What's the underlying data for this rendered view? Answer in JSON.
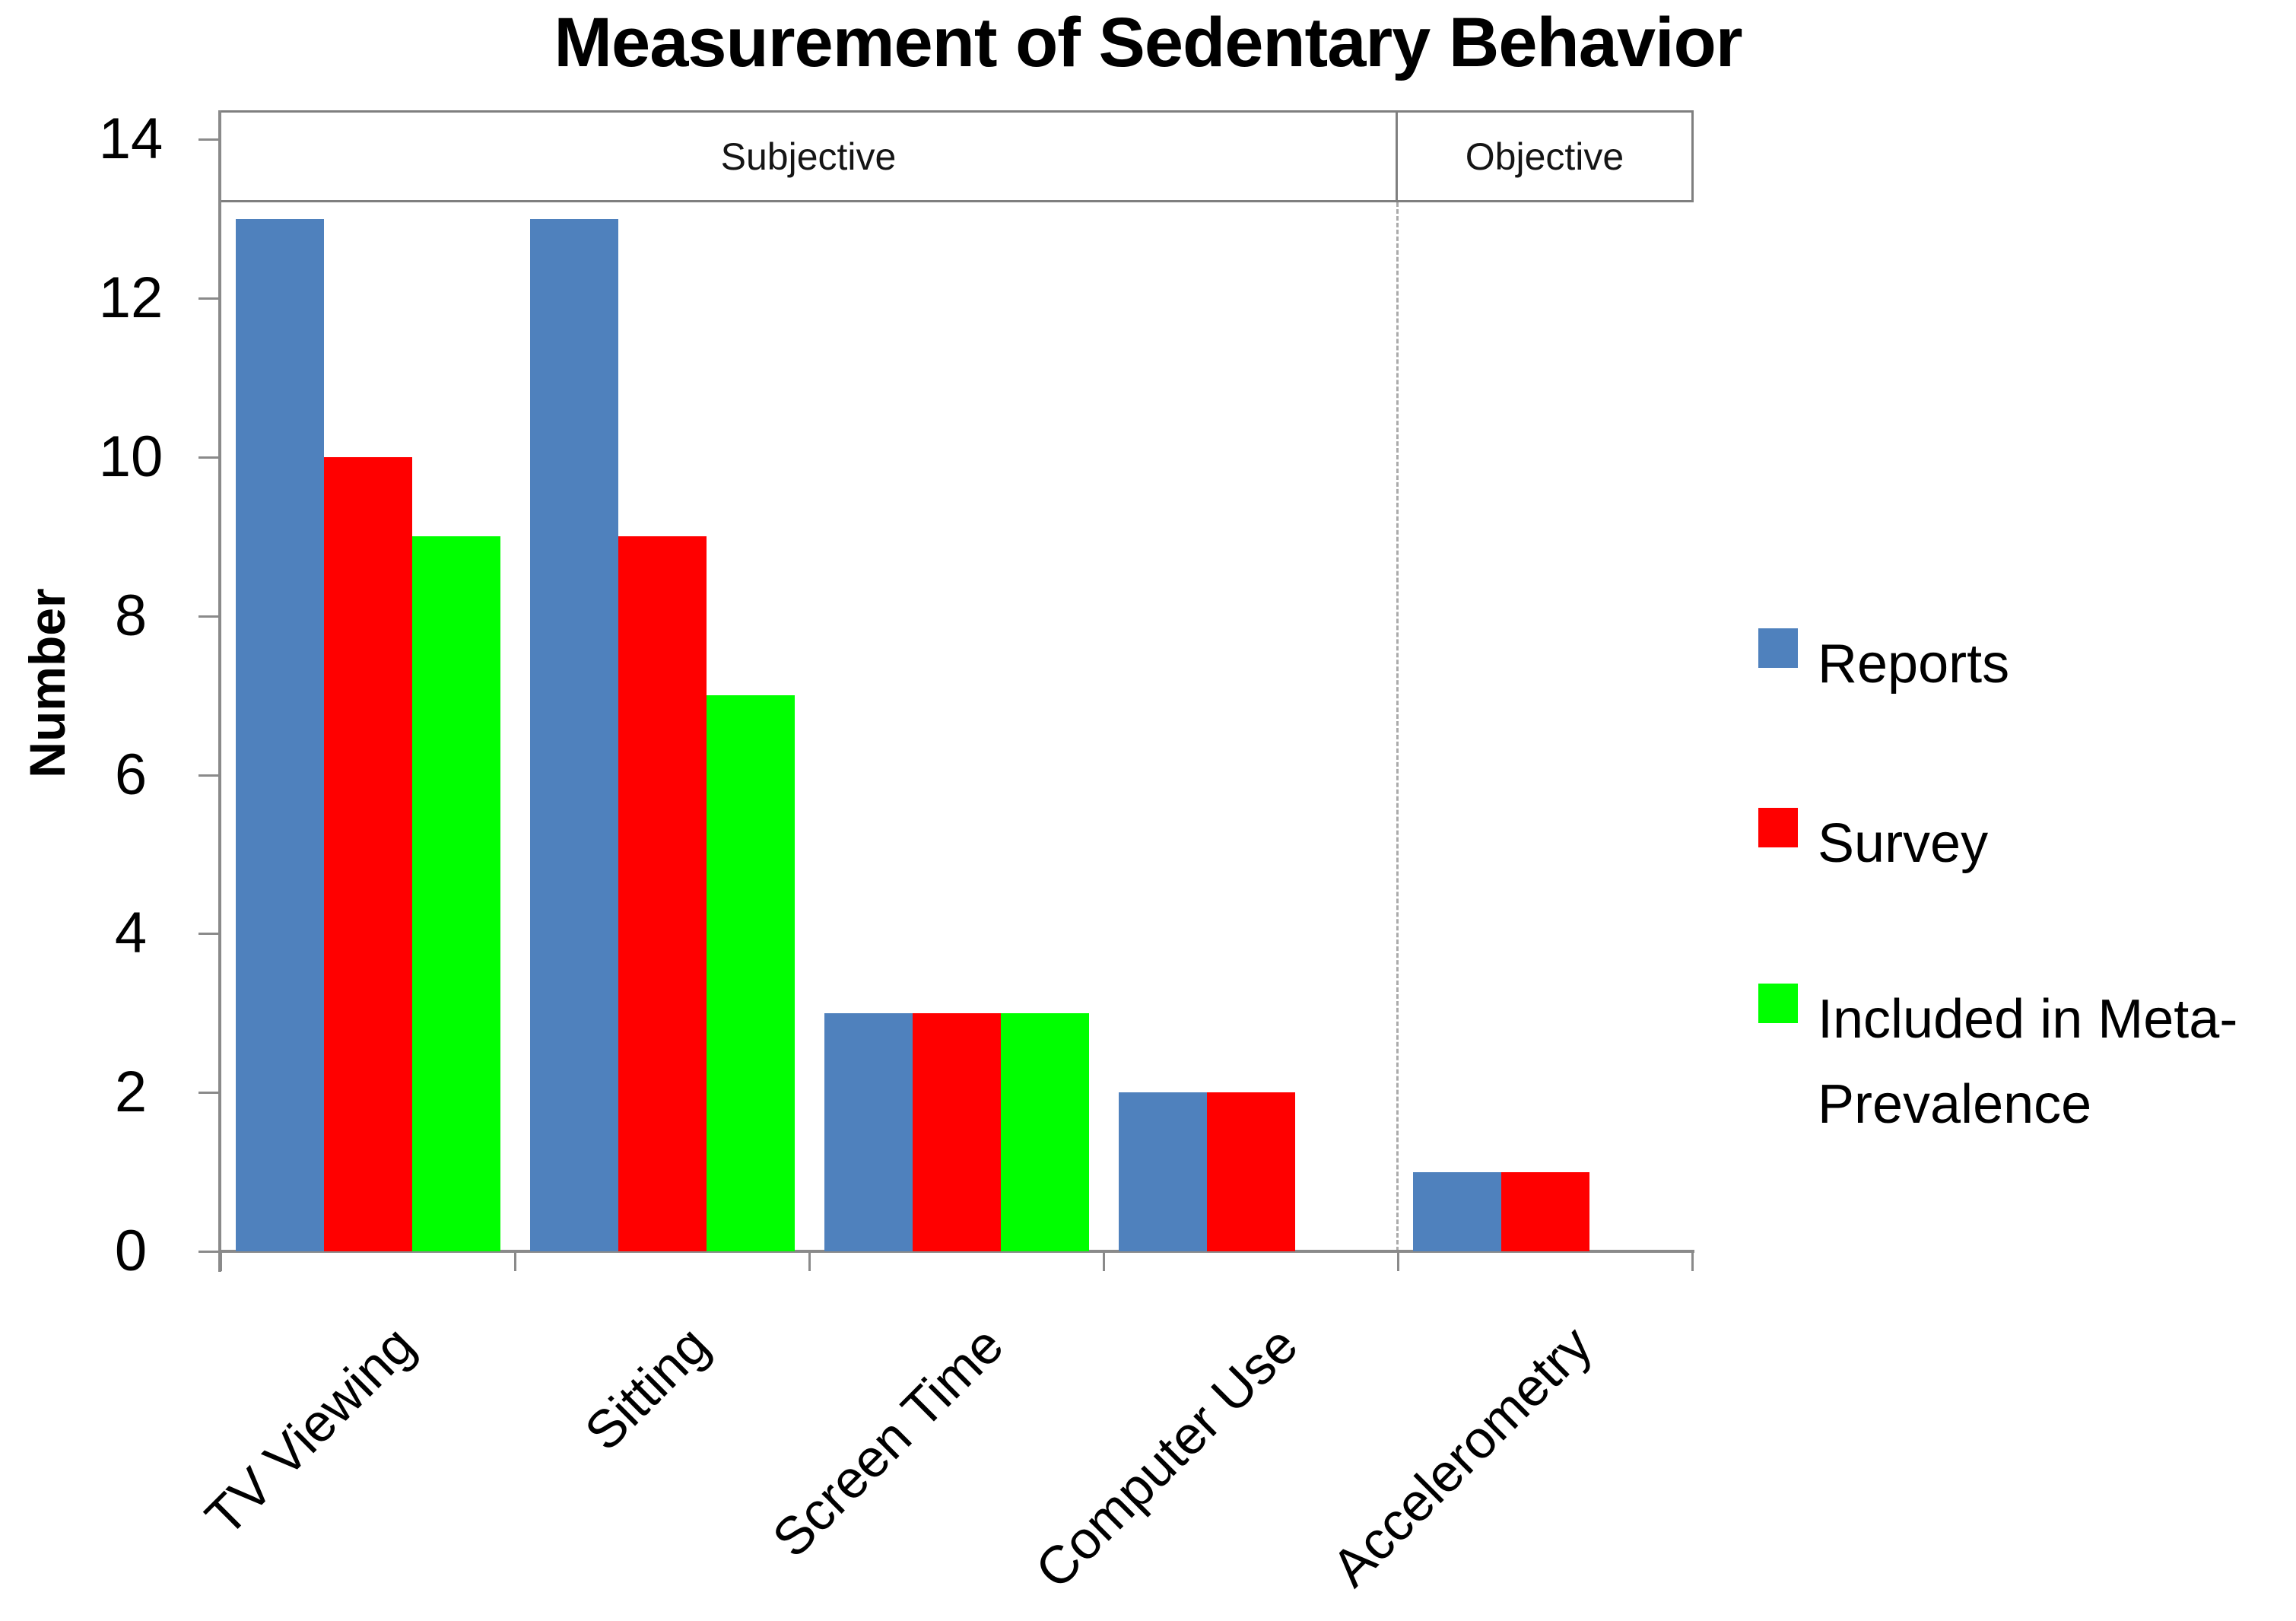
{
  "title": "Measurement of Sedentary Behavior",
  "chart_data": {
    "type": "bar",
    "title": "Measurement of Sedentary Behavior",
    "xlabel": "",
    "ylabel": "Number",
    "ylim": [
      0,
      14
    ],
    "yticks": [
      0,
      2,
      4,
      6,
      8,
      10,
      12,
      14
    ],
    "grid": false,
    "legend_position": "right",
    "categories": [
      "TV Viewing",
      "Sitting",
      "Screen Time",
      "Computer Use",
      "Accelerometry"
    ],
    "series": [
      {
        "name": "Reports",
        "color": "#4f81bd",
        "values": [
          13,
          13,
          3,
          2,
          1
        ]
      },
      {
        "name": "Survey",
        "color": "#ff0000",
        "values": [
          10,
          9,
          3,
          2,
          1
        ]
      },
      {
        "name": "Included in Meta-Prevalence",
        "color": "#00ff00",
        "values": [
          9,
          7,
          3,
          null,
          null
        ]
      }
    ],
    "regions": [
      {
        "label": "Subjective",
        "from": 0,
        "to": 3
      },
      {
        "label": "Objective",
        "from": 4,
        "to": 4
      }
    ],
    "legend_lines": [
      [
        "Reports"
      ],
      [
        "Survey"
      ],
      [
        "Included in Meta-",
        "Prevalence"
      ]
    ]
  },
  "colors": {
    "axis": "#8a8a8a",
    "region_border": "#7f7f7f",
    "divider": "#ababab",
    "series_blue": "#4f81bd",
    "series_red": "#ff0000",
    "series_green": "#00ff00"
  }
}
